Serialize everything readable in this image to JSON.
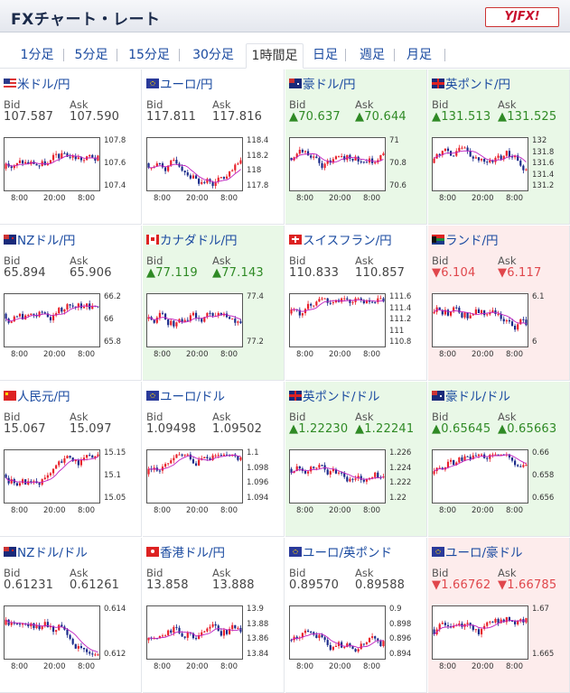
{
  "header": {
    "title": "FXチャート・レート",
    "logo_text": "YJFX!"
  },
  "tabs": [
    {
      "label": "1分足",
      "active": false
    },
    {
      "label": "5分足",
      "active": false
    },
    {
      "label": "15分足",
      "active": false
    },
    {
      "label": "30分足",
      "active": false
    },
    {
      "label": "1時間足",
      "active": true
    },
    {
      "label": "日足",
      "active": false
    },
    {
      "label": "週足",
      "active": false
    },
    {
      "label": "月足",
      "active": false
    }
  ],
  "labels": {
    "bid": "Bid",
    "ask": "Ask"
  },
  "colors": {
    "up_bg": "#e9f8e7",
    "down_bg": "#fdecec",
    "up_text": "#2f8a25",
    "down_text": "#e0474c",
    "link": "#1a4aa0",
    "candle_up": "#e8202a",
    "candle_down": "#1a2a8a",
    "ma": "#c020c0"
  },
  "pairs": [
    {
      "name": "米ドル/円",
      "bid": "107.587",
      "ask": "107.590",
      "trend": "none",
      "flag": "us",
      "chart": {
        "y_ticks": [
          "107.8",
          "107.6",
          "107.4"
        ],
        "x_ticks": [
          "8:00",
          "20:00",
          "8:00"
        ],
        "seed": 3
      }
    },
    {
      "name": "ユーロ/円",
      "bid": "117.811",
      "ask": "117.816",
      "trend": "none",
      "flag": "eu",
      "chart": {
        "y_ticks": [
          "118.4",
          "118.2",
          "118",
          "117.8"
        ],
        "x_ticks": [
          "8:00",
          "20:00",
          "8:00"
        ],
        "seed": 7
      }
    },
    {
      "name": "豪ドル/円",
      "bid": "▲70.637",
      "ask": "▲70.644",
      "trend": "up",
      "flag": "au",
      "chart": {
        "y_ticks": [
          "71",
          "70.8",
          "70.6"
        ],
        "x_ticks": [
          "8:00",
          "20:00",
          "8:00"
        ],
        "seed": 11
      }
    },
    {
      "name": "英ポンド/円",
      "bid": "▲131.513",
      "ask": "▲131.525",
      "trend": "up",
      "flag": "gb",
      "chart": {
        "y_ticks": [
          "132",
          "131.8",
          "131.6",
          "131.4",
          "131.2"
        ],
        "x_ticks": [
          "8:00",
          "20:00",
          "8:00"
        ],
        "seed": 13
      }
    },
    {
      "name": "NZドル/円",
      "bid": "65.894",
      "ask": "65.906",
      "trend": "none",
      "flag": "nz",
      "chart": {
        "y_ticks": [
          "66.2",
          "66",
          "65.8"
        ],
        "x_ticks": [
          "8:00",
          "20:00",
          "8:00"
        ],
        "seed": 17
      }
    },
    {
      "name": "カナダドル/円",
      "bid": "▲77.119",
      "ask": "▲77.143",
      "trend": "up",
      "flag": "ca",
      "chart": {
        "y_ticks": [
          "77.4",
          "77.2"
        ],
        "x_ticks": [
          "8:00",
          "20:00",
          "8:00"
        ],
        "seed": 19
      }
    },
    {
      "name": "スイスフラン/円",
      "bid": "110.833",
      "ask": "110.857",
      "trend": "none",
      "flag": "ch",
      "chart": {
        "y_ticks": [
          "111.6",
          "111.4",
          "111.2",
          "111",
          "110.8"
        ],
        "x_ticks": [
          "8:00",
          "20:00",
          "8:00"
        ],
        "seed": 23
      }
    },
    {
      "name": "ランド/円",
      "bid": "▼6.104",
      "ask": "▼6.117",
      "trend": "down",
      "flag": "za",
      "chart": {
        "y_ticks": [
          "6.1",
          "6"
        ],
        "x_ticks": [
          "8:00",
          "20:00",
          "8:00"
        ],
        "seed": 29
      }
    },
    {
      "name": "人民元/円",
      "bid": "15.067",
      "ask": "15.097",
      "trend": "none",
      "flag": "cn",
      "chart": {
        "y_ticks": [
          "15.15",
          "15.1",
          "15.05"
        ],
        "x_ticks": [
          "8:00",
          "20:00",
          "8:00"
        ],
        "seed": 31
      }
    },
    {
      "name": "ユーロ/ドル",
      "bid": "1.09498",
      "ask": "1.09502",
      "trend": "none",
      "flag": "eu",
      "chart": {
        "y_ticks": [
          "1.1",
          "1.098",
          "1.096",
          "1.094"
        ],
        "x_ticks": [
          "8:00",
          "20:00",
          "8:00"
        ],
        "seed": 37
      }
    },
    {
      "name": "英ポンド/ドル",
      "bid": "▲1.22230",
      "ask": "▲1.22241",
      "trend": "up",
      "flag": "gb",
      "chart": {
        "y_ticks": [
          "1.226",
          "1.224",
          "1.222",
          "1.22"
        ],
        "x_ticks": [
          "8:00",
          "20:00",
          "8:00"
        ],
        "seed": 41
      }
    },
    {
      "name": "豪ドル/ドル",
      "bid": "▲0.65645",
      "ask": "▲0.65663",
      "trend": "up",
      "flag": "au",
      "chart": {
        "y_ticks": [
          "0.66",
          "0.658",
          "0.656"
        ],
        "x_ticks": [
          "8:00",
          "20:00",
          "8:00"
        ],
        "seed": 43
      }
    },
    {
      "name": "NZドル/ドル",
      "bid": "0.61231",
      "ask": "0.61261",
      "trend": "none",
      "flag": "nz",
      "chart": {
        "y_ticks": [
          "0.614",
          "0.612"
        ],
        "x_ticks": [
          "8:00",
          "20:00",
          "8:00"
        ],
        "seed": 47
      }
    },
    {
      "name": "香港ドル/円",
      "bid": "13.858",
      "ask": "13.888",
      "trend": "none",
      "flag": "hk",
      "chart": {
        "y_ticks": [
          "13.9",
          "13.88",
          "13.86",
          "13.84"
        ],
        "x_ticks": [
          "8:00",
          "20:00",
          "8:00"
        ],
        "seed": 53
      }
    },
    {
      "name": "ユーロ/英ポンド",
      "bid": "0.89570",
      "ask": "0.89588",
      "trend": "none",
      "flag": "eu",
      "chart": {
        "y_ticks": [
          "0.9",
          "0.898",
          "0.896",
          "0.894"
        ],
        "x_ticks": [
          "8:00",
          "20:00",
          "8:00"
        ],
        "seed": 59
      }
    },
    {
      "name": "ユーロ/豪ドル",
      "bid": "▼1.66762",
      "ask": "▼1.66785",
      "trend": "down",
      "flag": "eu",
      "chart": {
        "y_ticks": [
          "1.67",
          "1.665"
        ],
        "x_ticks": [
          "8:00",
          "20:00",
          "8:00"
        ],
        "seed": 61
      }
    }
  ]
}
